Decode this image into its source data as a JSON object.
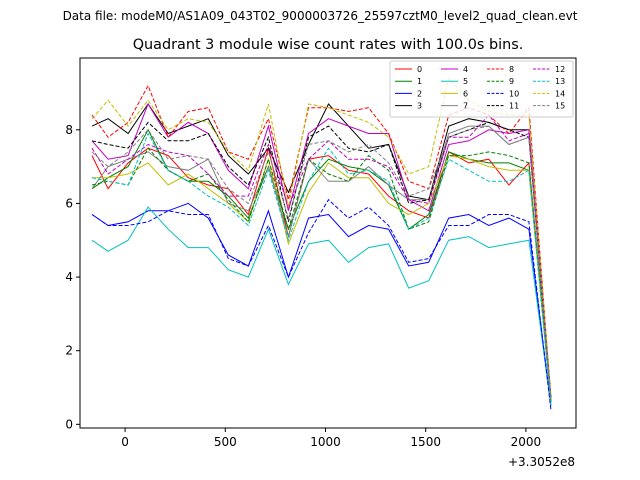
{
  "figure": {
    "suptitle": "Data file: modeM0/AS1A09_043T02_9000003726_25597cztM0_level2_quad_clean.evt"
  },
  "chart_data": {
    "type": "line",
    "title": "Quadrant 3 module wise count rates with 100.0s bins.",
    "xlabel": "",
    "ylabel": "",
    "x_offset_label": "+3.3052e8",
    "xlim": [
      -225,
      2250
    ],
    "ylim": [
      -0.1,
      9.95
    ],
    "xticks": [
      0,
      500,
      1000,
      1500,
      2000
    ],
    "xtick_labels": [
      "0",
      "500",
      "1000",
      "1500",
      "2000"
    ],
    "yticks": [
      0,
      2,
      4,
      6,
      8
    ],
    "ytick_labels": [
      "0",
      "2",
      "4",
      "6",
      "8"
    ],
    "grid": false,
    "legend_position": "top-right",
    "x": [
      -165,
      -85,
      15,
      115,
      215,
      315,
      415,
      515,
      615,
      715,
      815,
      915,
      1015,
      1115,
      1215,
      1315,
      1415,
      1515,
      1615,
      1715,
      1815,
      1915,
      2015,
      2125
    ],
    "series": [
      {
        "name": "0",
        "color": "#ff0000",
        "dash": "solid",
        "values": [
          7.3,
          6.4,
          7.1,
          7.5,
          7.3,
          6.7,
          6.5,
          6.4,
          5.7,
          7.5,
          5.1,
          7.2,
          7.3,
          6.9,
          6.8,
          6.2,
          5.8,
          5.6,
          7.4,
          7.1,
          7.2,
          6.5,
          7.1,
          0.6
        ]
      },
      {
        "name": "1",
        "color": "#008000",
        "dash": "solid",
        "values": [
          6.4,
          6.7,
          7.0,
          8.0,
          6.9,
          6.6,
          6.6,
          6.2,
          5.6,
          7.0,
          5.3,
          6.6,
          7.2,
          7.0,
          6.9,
          6.5,
          5.3,
          5.7,
          7.4,
          7.2,
          7.1,
          7.1,
          6.9,
          0.6
        ]
      },
      {
        "name": "2",
        "color": "#0000ff",
        "dash": "solid",
        "values": [
          5.7,
          5.4,
          5.5,
          5.8,
          5.8,
          6.0,
          5.6,
          4.6,
          4.3,
          5.8,
          4.0,
          5.6,
          5.7,
          5.1,
          5.4,
          5.3,
          4.3,
          4.4,
          5.6,
          5.7,
          5.4,
          5.6,
          5.3,
          0.5
        ]
      },
      {
        "name": "3",
        "color": "#000000",
        "dash": "solid",
        "values": [
          8.1,
          8.3,
          7.9,
          8.7,
          7.9,
          8.1,
          8.3,
          7.3,
          6.8,
          7.5,
          6.3,
          7.6,
          8.7,
          8.1,
          7.5,
          7.6,
          6.2,
          6.1,
          8.1,
          8.3,
          8.2,
          8.0,
          8.0,
          0.7
        ]
      },
      {
        "name": "4",
        "color": "#c000c0",
        "dash": "solid",
        "values": [
          7.7,
          7.2,
          7.3,
          8.7,
          7.8,
          8.2,
          7.9,
          6.9,
          6.4,
          8.1,
          5.8,
          7.9,
          8.3,
          8.1,
          7.9,
          7.9,
          6.1,
          5.8,
          7.6,
          7.7,
          8.0,
          7.9,
          8.0,
          0.7
        ]
      },
      {
        "name": "5",
        "color": "#00c0c0",
        "dash": "solid",
        "values": [
          5.0,
          4.7,
          5.0,
          5.9,
          5.3,
          4.8,
          4.8,
          4.2,
          4.0,
          5.3,
          3.8,
          4.9,
          5.0,
          4.4,
          4.8,
          4.9,
          3.7,
          3.9,
          5.0,
          5.1,
          4.8,
          4.9,
          5.0,
          0.5
        ]
      },
      {
        "name": "6",
        "color": "#c0c000",
        "dash": "solid",
        "values": [
          6.7,
          6.7,
          6.8,
          7.1,
          6.5,
          6.8,
          6.4,
          6.0,
          5.5,
          7.2,
          4.9,
          6.3,
          7.1,
          6.7,
          6.7,
          6.0,
          5.7,
          6.0,
          7.3,
          7.2,
          7.0,
          6.9,
          6.9,
          0.6
        ]
      },
      {
        "name": "7",
        "color": "#808080",
        "dash": "solid",
        "values": [
          6.4,
          7.0,
          7.2,
          7.4,
          7.0,
          6.9,
          7.2,
          6.0,
          5.8,
          7.0,
          5.1,
          7.2,
          6.6,
          6.6,
          7.0,
          6.5,
          6.1,
          6.1,
          7.9,
          8.1,
          8.1,
          7.6,
          7.8,
          0.6
        ]
      },
      {
        "name": "8",
        "color": "#ff0000",
        "dash": "dashed",
        "values": [
          8.4,
          7.8,
          8.2,
          9.2,
          7.8,
          8.5,
          8.6,
          7.4,
          7.2,
          8.3,
          6.1,
          8.6,
          8.6,
          8.5,
          8.6,
          7.9,
          6.6,
          6.4,
          8.4,
          8.6,
          8.4,
          7.9,
          8.6,
          0.7
        ]
      },
      {
        "name": "9",
        "color": "#008000",
        "dash": "dashed",
        "values": [
          6.5,
          6.6,
          6.5,
          7.5,
          6.9,
          6.6,
          6.8,
          6.1,
          5.5,
          7.2,
          5.3,
          7.2,
          6.8,
          6.6,
          7.3,
          6.9,
          5.3,
          5.5,
          7.3,
          7.3,
          7.4,
          7.3,
          7.1,
          0.6
        ]
      },
      {
        "name": "10",
        "color": "#0000ff",
        "dash": "dashed",
        "values": [
          5.7,
          5.4,
          5.4,
          5.5,
          5.8,
          5.7,
          5.7,
          4.5,
          4.3,
          5.4,
          4.0,
          5.2,
          6.1,
          5.6,
          5.9,
          5.4,
          4.4,
          4.5,
          5.4,
          5.4,
          5.7,
          5.7,
          5.5,
          0.4
        ]
      },
      {
        "name": "11",
        "color": "#000000",
        "dash": "dashed",
        "values": [
          7.7,
          7.6,
          7.5,
          8.2,
          7.7,
          7.7,
          7.9,
          7.0,
          6.5,
          7.8,
          5.5,
          7.8,
          8.1,
          7.5,
          7.4,
          7.6,
          6.0,
          6.1,
          7.8,
          8.0,
          8.2,
          8.0,
          7.8,
          0.7
        ]
      },
      {
        "name": "12",
        "color": "#c000c0",
        "dash": "dashed",
        "values": [
          7.5,
          6.8,
          7.2,
          7.6,
          7.4,
          7.3,
          6.8,
          6.2,
          6.2,
          7.6,
          5.9,
          7.2,
          7.7,
          7.2,
          7.2,
          7.0,
          6.1,
          6.0,
          7.8,
          7.8,
          8.4,
          7.7,
          7.9,
          0.7
        ]
      },
      {
        "name": "13",
        "color": "#00c0c0",
        "dash": "dashed",
        "values": [
          6.7,
          6.6,
          6.5,
          7.9,
          6.9,
          6.6,
          6.2,
          5.9,
          5.4,
          6.9,
          5.0,
          6.6,
          7.5,
          6.8,
          6.9,
          6.6,
          5.3,
          5.6,
          7.2,
          6.9,
          6.6,
          6.6,
          6.9,
          0.6
        ]
      },
      {
        "name": "14",
        "color": "#c0c000",
        "dash": "dashed",
        "values": [
          8.3,
          8.8,
          8.1,
          8.8,
          8.0,
          8.3,
          8.2,
          7.4,
          6.9,
          8.7,
          5.9,
          8.7,
          8.6,
          8.4,
          8.2,
          7.8,
          6.8,
          7.0,
          9.4,
          8.8,
          8.5,
          8.4,
          8.4,
          0.8
        ]
      },
      {
        "name": "15",
        "color": "#808080",
        "dash": "dashed",
        "values": [
          7.4,
          7.0,
          7.4,
          8.0,
          7.2,
          7.3,
          7.2,
          6.4,
          6.0,
          7.4,
          5.6,
          7.6,
          7.7,
          7.4,
          7.6,
          7.1,
          6.2,
          6.4,
          7.8,
          8.0,
          8.1,
          7.6,
          7.8,
          0.7
        ]
      }
    ]
  }
}
